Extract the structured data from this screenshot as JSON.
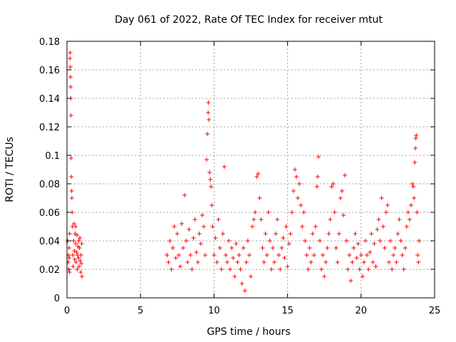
{
  "chart_data": {
    "type": "scatter",
    "title": "Day 061 of 2022, Rate Of TEC Index for receiver mtut",
    "xlabel": "GPS time / hours",
    "ylabel": "ROTI / TECUs",
    "xlim": [
      0,
      25
    ],
    "ylim": [
      0,
      0.18
    ],
    "x_ticks": [
      "0",
      "5",
      "10",
      "15",
      "20",
      "25"
    ],
    "y_ticks": [
      "0",
      "0.02",
      "0.04",
      "0.06",
      "0.08",
      "0.1",
      "0.12",
      "0.14",
      "0.16",
      "0.18"
    ],
    "grid": true,
    "marker": "plus",
    "color": "#ff0000",
    "series": [
      {
        "values": [
          [
            0.05,
            0.04
          ],
          [
            0.08,
            0.025
          ],
          [
            0.1,
            0.03
          ],
          [
            0.12,
            0.02
          ],
          [
            0.14,
            0.035
          ],
          [
            0.15,
            0.028
          ],
          [
            0.17,
            0.018
          ],
          [
            0.18,
            0.045
          ],
          [
            0.2,
            0.168
          ],
          [
            0.22,
            0.172
          ],
          [
            0.23,
            0.162
          ],
          [
            0.24,
            0.155
          ],
          [
            0.25,
            0.148
          ],
          [
            0.26,
            0.14
          ],
          [
            0.27,
            0.128
          ],
          [
            0.28,
            0.098
          ],
          [
            0.3,
            0.085
          ],
          [
            0.32,
            0.075
          ],
          [
            0.33,
            0.07
          ],
          [
            0.35,
            0.06
          ],
          [
            0.37,
            0.05
          ],
          [
            0.4,
            0.03
          ],
          [
            0.42,
            0.022
          ],
          [
            0.45,
            0.04
          ],
          [
            0.48,
            0.052
          ],
          [
            0.5,
            0.033
          ],
          [
            0.52,
            0.027
          ],
          [
            0.55,
            0.045
          ],
          [
            0.58,
            0.05
          ],
          [
            0.6,
            0.038
          ],
          [
            0.62,
            0.025
          ],
          [
            0.65,
            0.032
          ],
          [
            0.68,
            0.044
          ],
          [
            0.7,
            0.02
          ],
          [
            0.72,
            0.03
          ],
          [
            0.75,
            0.036
          ],
          [
            0.78,
            0.028
          ],
          [
            0.8,
            0.04
          ],
          [
            0.82,
            0.022
          ],
          [
            0.85,
            0.035
          ],
          [
            0.88,
            0.042
          ],
          [
            0.9,
            0.026
          ],
          [
            0.93,
            0.018
          ],
          [
            0.95,
            0.03
          ],
          [
            0.98,
            0.024
          ],
          [
            1.0,
            0.038
          ],
          [
            1.02,
            0.015
          ],
          [
            6.8,
            0.03
          ],
          [
            6.9,
            0.025
          ],
          [
            7.0,
            0.04
          ],
          [
            7.1,
            0.02
          ],
          [
            7.2,
            0.035
          ],
          [
            7.3,
            0.05
          ],
          [
            7.4,
            0.028
          ],
          [
            7.5,
            0.045
          ],
          [
            7.6,
            0.03
          ],
          [
            7.7,
            0.022
          ],
          [
            7.8,
            0.052
          ],
          [
            7.9,
            0.035
          ],
          [
            8.0,
            0.072
          ],
          [
            8.1,
            0.04
          ],
          [
            8.2,
            0.025
          ],
          [
            8.3,
            0.048
          ],
          [
            8.4,
            0.03
          ],
          [
            8.5,
            0.02
          ],
          [
            8.6,
            0.042
          ],
          [
            8.7,
            0.055
          ],
          [
            8.8,
            0.032
          ],
          [
            8.9,
            0.025
          ],
          [
            9.0,
            0.045
          ],
          [
            9.1,
            0.038
          ],
          [
            9.2,
            0.058
          ],
          [
            9.3,
            0.05
          ],
          [
            9.4,
            0.03
          ],
          [
            9.5,
            0.097
          ],
          [
            9.55,
            0.115
          ],
          [
            9.6,
            0.13
          ],
          [
            9.62,
            0.137
          ],
          [
            9.65,
            0.125
          ],
          [
            9.7,
            0.088
          ],
          [
            9.75,
            0.083
          ],
          [
            9.8,
            0.078
          ],
          [
            9.85,
            0.065
          ],
          [
            9.9,
            0.05
          ],
          [
            10.0,
            0.03
          ],
          [
            10.1,
            0.042
          ],
          [
            10.2,
            0.025
          ],
          [
            10.3,
            0.055
          ],
          [
            10.4,
            0.035
          ],
          [
            10.5,
            0.02
          ],
          [
            10.6,
            0.045
          ],
          [
            10.7,
            0.092
          ],
          [
            10.8,
            0.03
          ],
          [
            10.9,
            0.025
          ],
          [
            11.0,
            0.04
          ],
          [
            11.1,
            0.02
          ],
          [
            11.2,
            0.035
          ],
          [
            11.3,
            0.028
          ],
          [
            11.4,
            0.015
          ],
          [
            11.5,
            0.038
          ],
          [
            11.6,
            0.025
          ],
          [
            11.7,
            0.03
          ],
          [
            11.8,
            0.02
          ],
          [
            11.9,
            0.01
          ],
          [
            12.0,
            0.035
          ],
          [
            12.1,
            0.005
          ],
          [
            12.2,
            0.025
          ],
          [
            12.3,
            0.04
          ],
          [
            12.4,
            0.03
          ],
          [
            12.5,
            0.015
          ],
          [
            12.6,
            0.05
          ],
          [
            12.7,
            0.055
          ],
          [
            12.8,
            0.06
          ],
          [
            12.9,
            0.085
          ],
          [
            13.0,
            0.087
          ],
          [
            13.1,
            0.07
          ],
          [
            13.2,
            0.055
          ],
          [
            13.3,
            0.035
          ],
          [
            13.4,
            0.025
          ],
          [
            13.5,
            0.045
          ],
          [
            13.6,
            0.03
          ],
          [
            13.7,
            0.06
          ],
          [
            13.8,
            0.04
          ],
          [
            13.9,
            0.02
          ],
          [
            14.0,
            0.035
          ],
          [
            14.1,
            0.025
          ],
          [
            14.2,
            0.045
          ],
          [
            14.3,
            0.055
          ],
          [
            14.4,
            0.03
          ],
          [
            14.5,
            0.02
          ],
          [
            14.6,
            0.035
          ],
          [
            14.7,
            0.042
          ],
          [
            14.8,
            0.028
          ],
          [
            14.9,
            0.05
          ],
          [
            15.0,
            0.022
          ],
          [
            15.1,
            0.038
          ],
          [
            15.2,
            0.045
          ],
          [
            15.3,
            0.06
          ],
          [
            15.4,
            0.075
          ],
          [
            15.5,
            0.09
          ],
          [
            15.6,
            0.085
          ],
          [
            15.7,
            0.07
          ],
          [
            15.8,
            0.08
          ],
          [
            15.9,
            0.065
          ],
          [
            16.0,
            0.05
          ],
          [
            16.1,
            0.06
          ],
          [
            16.2,
            0.04
          ],
          [
            16.3,
            0.03
          ],
          [
            16.4,
            0.02
          ],
          [
            16.5,
            0.035
          ],
          [
            16.6,
            0.025
          ],
          [
            16.7,
            0.045
          ],
          [
            16.8,
            0.03
          ],
          [
            16.9,
            0.05
          ],
          [
            17.0,
            0.078
          ],
          [
            17.05,
            0.085
          ],
          [
            17.1,
            0.099
          ],
          [
            17.2,
            0.04
          ],
          [
            17.3,
            0.02
          ],
          [
            17.4,
            0.03
          ],
          [
            17.5,
            0.015
          ],
          [
            17.6,
            0.025
          ],
          [
            17.7,
            0.035
          ],
          [
            17.8,
            0.045
          ],
          [
            17.9,
            0.055
          ],
          [
            18.0,
            0.078
          ],
          [
            18.1,
            0.08
          ],
          [
            18.2,
            0.06
          ],
          [
            18.3,
            0.035
          ],
          [
            18.4,
            0.025
          ],
          [
            18.5,
            0.045
          ],
          [
            18.6,
            0.07
          ],
          [
            18.7,
            0.075
          ],
          [
            18.8,
            0.058
          ],
          [
            18.9,
            0.086
          ],
          [
            19.0,
            0.04
          ],
          [
            19.1,
            0.02
          ],
          [
            19.2,
            0.03
          ],
          [
            19.3,
            0.012
          ],
          [
            19.4,
            0.025
          ],
          [
            19.5,
            0.035
          ],
          [
            19.6,
            0.045
          ],
          [
            19.7,
            0.028
          ],
          [
            19.8,
            0.038
          ],
          [
            19.9,
            0.02
          ],
          [
            20.0,
            0.03
          ],
          [
            20.1,
            0.015
          ],
          [
            20.2,
            0.025
          ],
          [
            20.3,
            0.04
          ],
          [
            20.4,
            0.03
          ],
          [
            20.5,
            0.02
          ],
          [
            20.6,
            0.032
          ],
          [
            20.7,
            0.045
          ],
          [
            20.8,
            0.025
          ],
          [
            20.9,
            0.038
          ],
          [
            21.0,
            0.022
          ],
          [
            21.1,
            0.048
          ],
          [
            21.2,
            0.055
          ],
          [
            21.3,
            0.04
          ],
          [
            21.4,
            0.07
          ],
          [
            21.5,
            0.05
          ],
          [
            21.6,
            0.035
          ],
          [
            21.7,
            0.06
          ],
          [
            21.8,
            0.065
          ],
          [
            21.9,
            0.025
          ],
          [
            22.0,
            0.04
          ],
          [
            22.1,
            0.02
          ],
          [
            22.2,
            0.03
          ],
          [
            22.3,
            0.035
          ],
          [
            22.4,
            0.025
          ],
          [
            22.5,
            0.045
          ],
          [
            22.6,
            0.055
          ],
          [
            22.7,
            0.04
          ],
          [
            22.8,
            0.03
          ],
          [
            22.9,
            0.02
          ],
          [
            23.0,
            0.035
          ],
          [
            23.1,
            0.05
          ],
          [
            23.2,
            0.06
          ],
          [
            23.3,
            0.055
          ],
          [
            23.4,
            0.065
          ],
          [
            23.5,
            0.08
          ],
          [
            23.55,
            0.078
          ],
          [
            23.6,
            0.07
          ],
          [
            23.65,
            0.095
          ],
          [
            23.7,
            0.105
          ],
          [
            23.72,
            0.112
          ],
          [
            23.75,
            0.114
          ],
          [
            23.8,
            0.06
          ],
          [
            23.85,
            0.03
          ],
          [
            23.9,
            0.025
          ],
          [
            23.95,
            0.04
          ]
        ]
      }
    ]
  }
}
